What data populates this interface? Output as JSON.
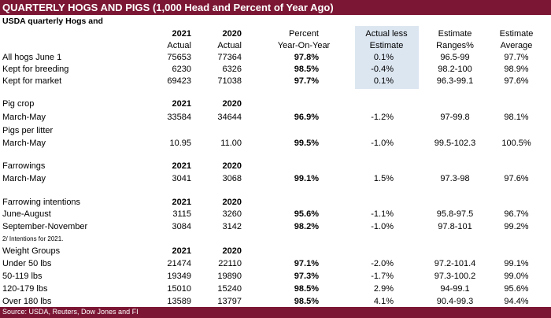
{
  "header": {
    "title": "QUARTERLY HOGS AND PIGS (1,000 Head and Percent of Year Ago)",
    "subtitle": "USDA quarterly Hogs and"
  },
  "table": {
    "columns": [
      [
        "",
        "2021",
        "2020",
        "Percent",
        "Actual less",
        "Estimate",
        "Estimate"
      ],
      [
        "",
        "Actual",
        "Actual",
        "Year-On-Year",
        "Estimate",
        "Ranges%",
        "Average"
      ]
    ],
    "rows": [
      [
        "All hogs June 1",
        "75653",
        "77364",
        "97.8%",
        "0.1%",
        "96.5-99",
        "97.7%"
      ],
      [
        "Kept for breeding",
        "6230",
        "6326",
        "98.5%",
        "-0.4%",
        "98.2-100",
        "98.9%"
      ],
      [
        "Kept for market",
        "69423",
        "71038",
        "97.7%",
        "0.1%",
        "96.3-99.1",
        "97.6%"
      ],
      [
        "Pig crop",
        "2021",
        "2020"
      ],
      [
        "March-May",
        "33584",
        "34644",
        "96.9%",
        "-1.2%",
        "97-99.8",
        "98.1%"
      ],
      [
        "Pigs per litter"
      ],
      [
        "March-May",
        "10.95",
        "11.00",
        "99.5%",
        "-1.0%",
        "99.5-102.3",
        "100.5%"
      ],
      [
        "Farrowings",
        "2021",
        "2020"
      ],
      [
        "March-May",
        "3041",
        "3068",
        "99.1%",
        "1.5%",
        "97.3-98",
        "97.6%"
      ],
      [
        "Farrowing intentions",
        "2021",
        "2020"
      ],
      [
        "June-August",
        "3115",
        "3260",
        "95.6%",
        "-1.1%",
        "95.8-97.5",
        "96.7%"
      ],
      [
        "September-November",
        "3084",
        "3142",
        "98.2%",
        "-1.0%",
        "97.8-101",
        "99.2%"
      ],
      [
        "2/ Intentions for 2021."
      ],
      [
        "Weight Groups",
        "2021",
        "2020"
      ],
      [
        "Under 50 lbs",
        "21474",
        "22110",
        "97.1%",
        "-2.0%",
        "97.2-101.4",
        "99.1%"
      ],
      [
        "50-119 lbs",
        "19349",
        "19890",
        "97.3%",
        "-1.7%",
        "97.3-100.2",
        "99.0%"
      ],
      [
        "120-179 lbs",
        "15010",
        "15240",
        "98.5%",
        "2.9%",
        "94-99.1",
        "95.6%"
      ],
      [
        "Over 180 lbs",
        "13589",
        "13797",
        "98.5%",
        "4.1%",
        "90.4-99.3",
        "94.4%"
      ]
    ]
  },
  "footer": {
    "source": "Source: USDA, Reuters, Dow Jones and FI"
  }
}
